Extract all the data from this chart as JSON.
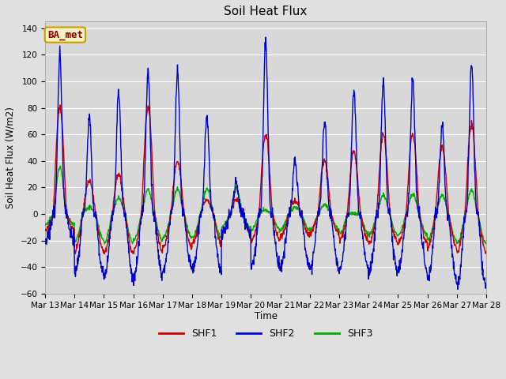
{
  "title": "Soil Heat Flux",
  "ylabel": "Soil Heat Flux (W/m2)",
  "xlabel": "Time",
  "ylim": [
    -60,
    145
  ],
  "yticks": [
    -60,
    -40,
    -20,
    0,
    20,
    40,
    60,
    80,
    100,
    120,
    140
  ],
  "background_color": "#e0e0e0",
  "plot_bg_color": "#d8d8d8",
  "grid_color": "#ffffff",
  "shf1_color": "#cc0000",
  "shf2_color": "#0000cc",
  "shf3_color": "#00aa00",
  "line_width": 1.0,
  "legend_label": "BA_met",
  "legend_bg": "#f5f0c0",
  "legend_border": "#c8a000",
  "legend_text_color": "#8b0000",
  "start_day": 13,
  "end_day": 28,
  "xtick_labels": [
    "Mar 13",
    "Mar 14",
    "Mar 15",
    "Mar 16",
    "Mar 17",
    "Mar 18",
    "Mar 19",
    "Mar 20",
    "Mar 21",
    "Mar 22",
    "Mar 23",
    "Mar 24",
    "Mar 25",
    "Mar 26",
    "Mar 27",
    "Mar 28"
  ],
  "shf2_day_peaks": [
    120,
    73,
    93,
    107,
    107,
    75,
    25,
    130,
    40,
    70,
    95,
    100,
    100,
    68,
    115
  ],
  "shf1_day_peaks": [
    80,
    25,
    30,
    80,
    40,
    11,
    10,
    60,
    10,
    40,
    47,
    60,
    60,
    50,
    67
  ],
  "shf3_day_peaks": [
    35,
    5,
    12,
    18,
    19,
    19,
    19,
    3,
    5,
    7,
    0,
    14,
    15,
    14,
    18
  ],
  "shf2_night_min": [
    -20,
    -45,
    -47,
    -48,
    -42,
    -43,
    -15,
    -40,
    -40,
    -40,
    -42,
    -44,
    -41,
    -50,
    -55
  ],
  "shf1_night_min": [
    -12,
    -28,
    -30,
    -28,
    -25,
    -22,
    -15,
    -20,
    -17,
    -15,
    -20,
    -22,
    -22,
    -25,
    -28
  ],
  "shf3_night_min": [
    -8,
    -20,
    -22,
    -20,
    -18,
    -18,
    -10,
    -12,
    -12,
    -12,
    -15,
    -16,
    -16,
    -20,
    -22
  ],
  "sharpness_shf2": 4.0,
  "sharpness_shf1": 1.2,
  "sharpness_shf3": 1.5
}
